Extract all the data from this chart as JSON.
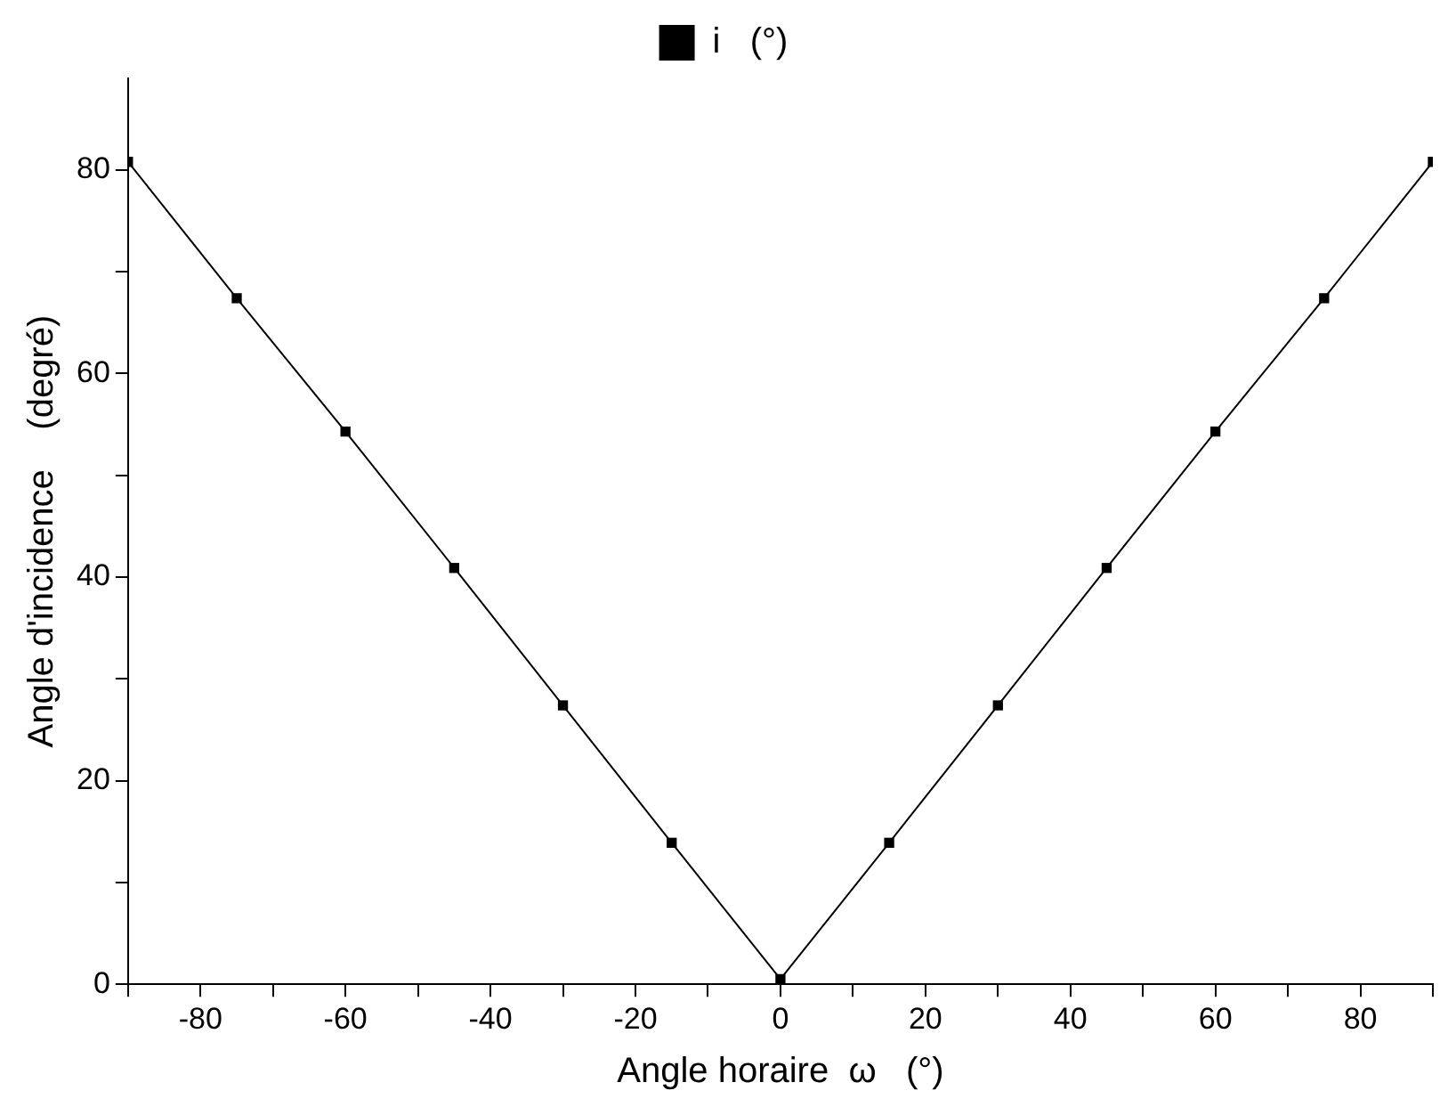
{
  "chart_data": {
    "type": "line",
    "xlabel": "Angle horaire  ω   (°)",
    "ylabel": "Angle d'incidence    (degré)",
    "x": [
      -90,
      -75,
      -60,
      -45,
      -30,
      -15,
      0,
      15,
      30,
      45,
      60,
      75,
      90
    ],
    "series": [
      {
        "name": "i   (°)",
        "color": "#000000",
        "values": [
          80.8,
          67.4,
          54.3,
          40.9,
          27.4,
          13.9,
          0.5,
          13.9,
          27.4,
          40.9,
          54.3,
          67.4,
          80.8
        ]
      }
    ],
    "xlim": [
      -90,
      90
    ],
    "xticks": [
      {
        "value": -90,
        "label": null
      },
      -80,
      {
        "value": -70,
        "label": null
      },
      -60,
      {
        "value": -50,
        "label": null
      },
      -40,
      {
        "value": -30,
        "label": null
      },
      -20,
      {
        "value": -10,
        "label": null
      },
      0,
      {
        "value": 10,
        "label": null
      },
      20,
      {
        "value": 30,
        "label": null
      },
      40,
      {
        "value": 50,
        "label": null
      },
      60,
      {
        "value": 70,
        "label": null
      },
      80,
      {
        "value": 90,
        "label": null
      }
    ],
    "ylim": [
      0,
      89
    ],
    "yticks": [
      0,
      {
        "value": 10,
        "label": null
      },
      20,
      {
        "value": 30,
        "label": null
      },
      40,
      {
        "value": 50,
        "label": null
      },
      60,
      {
        "value": 70,
        "label": null
      },
      80
    ],
    "grid": false,
    "legend": "top",
    "marker": "square",
    "line_style": "solid"
  }
}
